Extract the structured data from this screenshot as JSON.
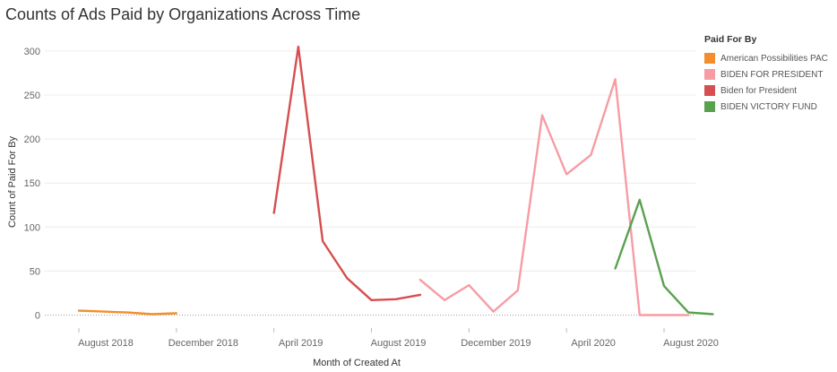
{
  "chart_data": {
    "type": "line",
    "title": "Counts of Ads Paid by Organizations Across Time",
    "xlabel": "Month of Created At",
    "ylabel": "Count of Paid For By",
    "ylim": [
      0,
      320
    ],
    "yticks": [
      0,
      50,
      100,
      150,
      200,
      250,
      300
    ],
    "xticks": [
      "August 2018",
      "December 2018",
      "April 2019",
      "August 2019",
      "December 2019",
      "April 2020",
      "August 2020"
    ],
    "xtick_months": [
      "2018-08",
      "2018-12",
      "2019-04",
      "2019-08",
      "2019-12",
      "2020-04",
      "2020-08"
    ],
    "legend_title": "Paid For By",
    "legend_position": "right",
    "grid": true,
    "series": [
      {
        "name": "American Possibilities PAC",
        "color": "#f28e2b",
        "points": [
          [
            "2018-08",
            5
          ],
          [
            "2018-09",
            4
          ],
          [
            "2018-10",
            3
          ],
          [
            "2018-11",
            1
          ],
          [
            "2018-12",
            2
          ]
        ]
      },
      {
        "name": "BIDEN FOR PRESIDENT",
        "color": "#f79ca3",
        "points": [
          [
            "2019-10",
            40
          ],
          [
            "2019-11",
            17
          ],
          [
            "2019-12",
            34
          ],
          [
            "2020-01",
            4
          ],
          [
            "2020-02",
            28
          ],
          [
            "2020-03",
            227
          ],
          [
            "2020-04",
            160
          ],
          [
            "2020-05",
            182
          ],
          [
            "2020-06",
            268
          ],
          [
            "2020-07",
            0
          ],
          [
            "2020-08",
            0
          ],
          [
            "2020-09",
            0
          ]
        ]
      },
      {
        "name": "Biden for President",
        "color": "#d64e4f",
        "points": [
          [
            "2019-04",
            116
          ],
          [
            "2019-05",
            305
          ],
          [
            "2019-06",
            84
          ],
          [
            "2019-07",
            42
          ],
          [
            "2019-08",
            17
          ],
          [
            "2019-09",
            18
          ],
          [
            "2019-10",
            23
          ]
        ]
      },
      {
        "name": "BIDEN VICTORY FUND",
        "color": "#59a14f",
        "points": [
          [
            "2020-06",
            53
          ],
          [
            "2020-07",
            131
          ],
          [
            "2020-08",
            33
          ],
          [
            "2020-09",
            3
          ],
          [
            "2020-10",
            1
          ]
        ]
      }
    ]
  }
}
